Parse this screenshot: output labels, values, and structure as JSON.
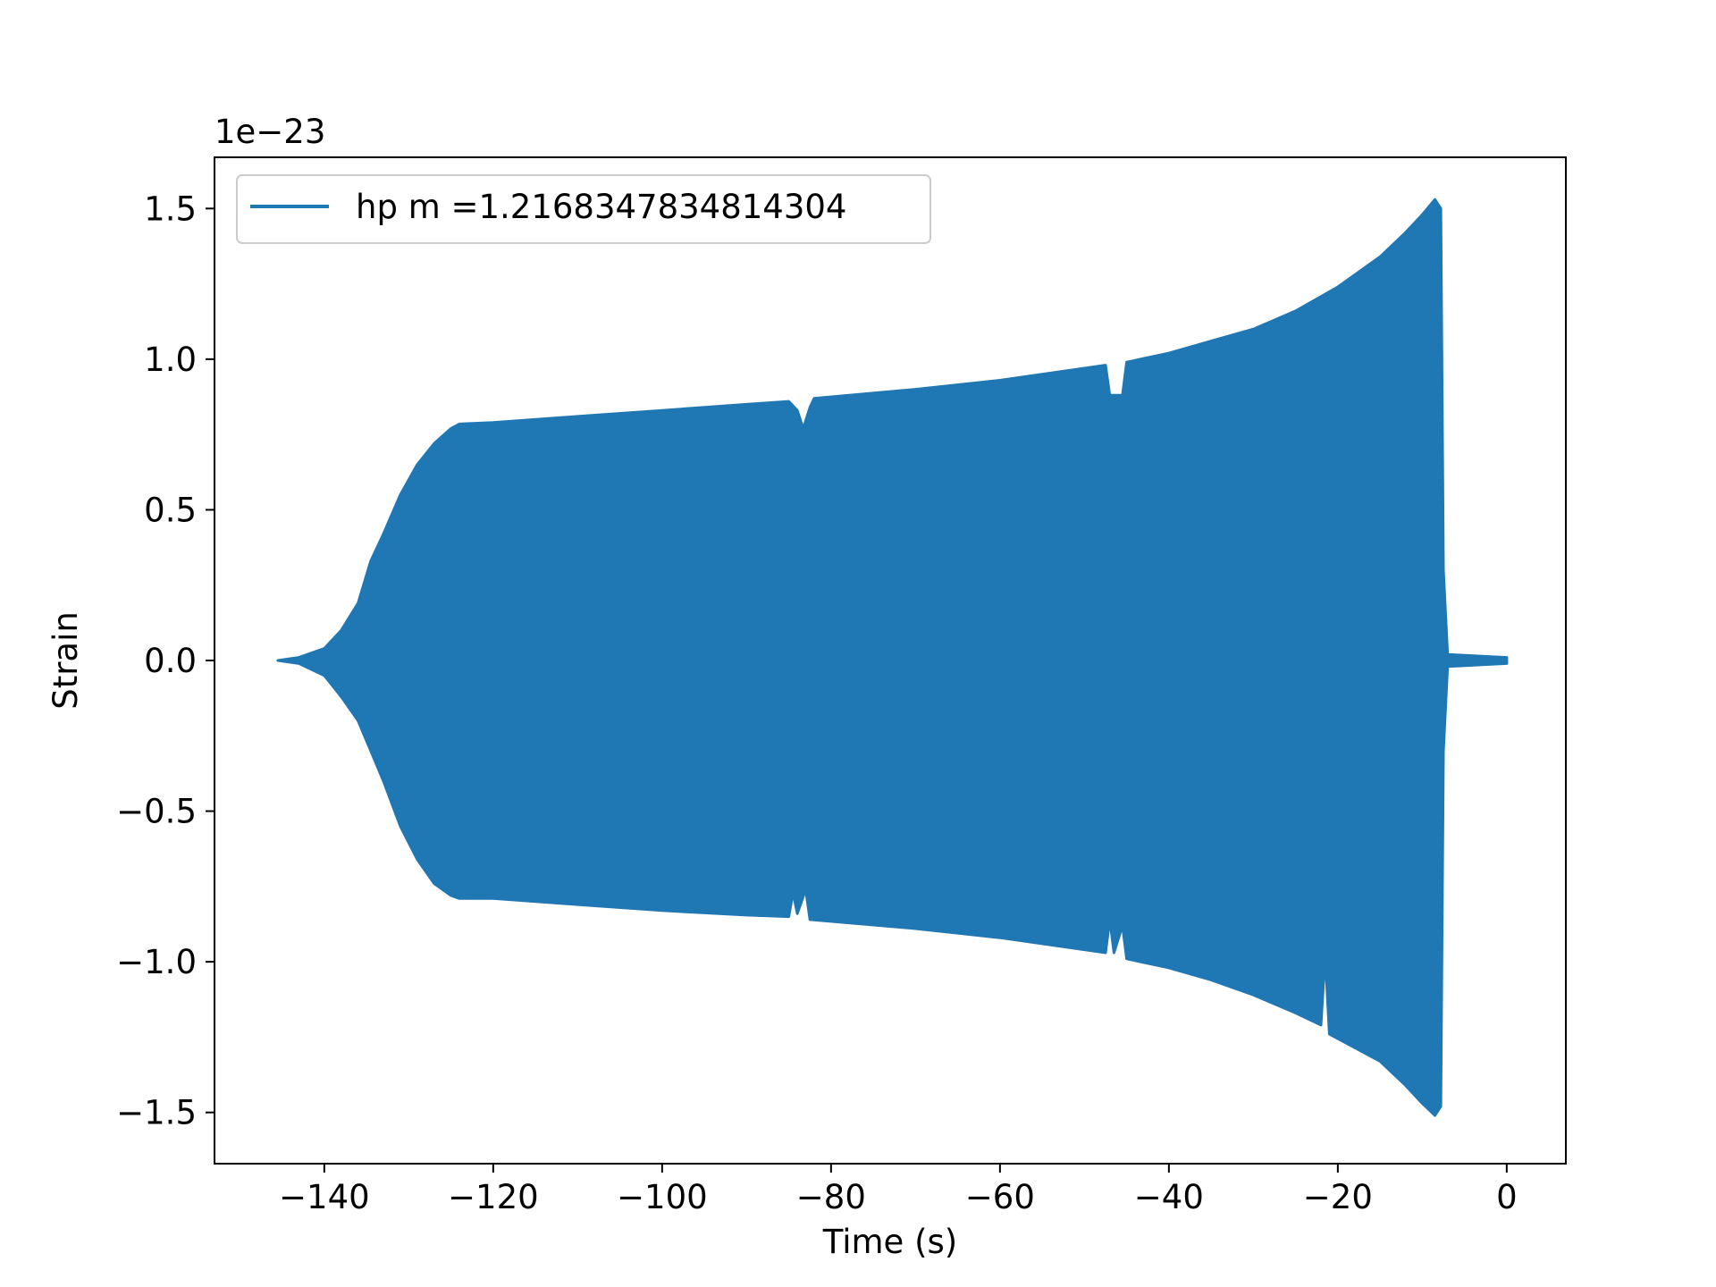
{
  "chart_data": {
    "type": "line",
    "title": "",
    "xlabel": "Time (s)",
    "ylabel": "Strain",
    "y_offset_label": "1e−23",
    "xlim": [
      -153,
      7
    ],
    "ylim": [
      -1.67,
      1.67
    ],
    "x_ticks": [
      -140,
      -120,
      -100,
      -80,
      -60,
      -40,
      -20,
      0
    ],
    "x_tick_labels": [
      "−140",
      "−120",
      "−100",
      "−80",
      "−60",
      "−40",
      "−20",
      "0"
    ],
    "y_ticks": [
      1.5,
      1.0,
      0.5,
      0.0,
      -0.5,
      -1.0,
      -1.5
    ],
    "y_tick_labels": [
      "1.5",
      "1.0",
      "0.5",
      "0.0",
      "−0.5",
      "−1.0",
      "−1.5"
    ],
    "grid": false,
    "legend": {
      "position": "top-left",
      "entries": [
        "hp m =1.2168347834814304"
      ]
    },
    "series": [
      {
        "name": "hp m =1.2168347834814304",
        "color": "#1f77b4",
        "upper_envelope": [
          [
            -145.5,
            0.0
          ],
          [
            -143.0,
            0.01
          ],
          [
            -140.0,
            0.04
          ],
          [
            -138.0,
            0.1
          ],
          [
            -136.0,
            0.19
          ],
          [
            -134.5,
            0.33
          ],
          [
            -133.0,
            0.42
          ],
          [
            -131.0,
            0.55
          ],
          [
            -129.0,
            0.65
          ],
          [
            -127.0,
            0.72
          ],
          [
            -125.0,
            0.77
          ],
          [
            -124.0,
            0.785
          ],
          [
            -120.0,
            0.79
          ],
          [
            -110.0,
            0.81
          ],
          [
            -100.0,
            0.83
          ],
          [
            -90.0,
            0.85
          ],
          [
            -85.0,
            0.86
          ],
          [
            -84.0,
            0.83
          ],
          [
            -83.3,
            0.77
          ],
          [
            -82.5,
            0.84
          ],
          [
            -82.0,
            0.87
          ],
          [
            -70.0,
            0.9
          ],
          [
            -60.0,
            0.93
          ],
          [
            -50.0,
            0.97
          ],
          [
            -47.5,
            0.98
          ],
          [
            -47.0,
            0.88
          ],
          [
            -45.5,
            0.88
          ],
          [
            -45.0,
            0.99
          ],
          [
            -40.0,
            1.02
          ],
          [
            -35.0,
            1.06
          ],
          [
            -30.0,
            1.1
          ],
          [
            -25.0,
            1.16
          ],
          [
            -20.0,
            1.24
          ],
          [
            -15.0,
            1.34
          ],
          [
            -12.0,
            1.42
          ],
          [
            -10.0,
            1.48
          ],
          [
            -8.5,
            1.53
          ],
          [
            -7.8,
            1.5
          ],
          [
            -7.5,
            0.3
          ],
          [
            -7.0,
            0.02
          ],
          [
            0.0,
            0.01
          ]
        ],
        "lower_envelope": [
          [
            -145.5,
            0.0
          ],
          [
            -143.0,
            -0.01
          ],
          [
            -140.0,
            -0.05
          ],
          [
            -138.0,
            -0.12
          ],
          [
            -136.0,
            -0.2
          ],
          [
            -134.5,
            -0.3
          ],
          [
            -133.0,
            -0.4
          ],
          [
            -131.0,
            -0.55
          ],
          [
            -129.0,
            -0.66
          ],
          [
            -127.0,
            -0.74
          ],
          [
            -125.0,
            -0.78
          ],
          [
            -124.0,
            -0.79
          ],
          [
            -120.0,
            -0.79
          ],
          [
            -110.0,
            -0.81
          ],
          [
            -100.0,
            -0.83
          ],
          [
            -90.0,
            -0.845
          ],
          [
            -85.0,
            -0.85
          ],
          [
            -84.5,
            -0.77
          ],
          [
            -84.0,
            -0.84
          ],
          [
            -83.0,
            -0.76
          ],
          [
            -82.5,
            -0.86
          ],
          [
            -70.0,
            -0.89
          ],
          [
            -60.0,
            -0.92
          ],
          [
            -50.0,
            -0.96
          ],
          [
            -47.5,
            -0.97
          ],
          [
            -47.0,
            -0.86
          ],
          [
            -46.5,
            -0.97
          ],
          [
            -45.5,
            -0.88
          ],
          [
            -45.0,
            -0.99
          ],
          [
            -40.0,
            -1.02
          ],
          [
            -35.0,
            -1.06
          ],
          [
            -30.0,
            -1.11
          ],
          [
            -25.0,
            -1.17
          ],
          [
            -22.0,
            -1.21
          ],
          [
            -21.5,
            -0.98
          ],
          [
            -21.0,
            -1.24
          ],
          [
            -15.0,
            -1.33
          ],
          [
            -12.0,
            -1.41
          ],
          [
            -10.0,
            -1.47
          ],
          [
            -8.5,
            -1.51
          ],
          [
            -7.8,
            -1.48
          ],
          [
            -7.5,
            -0.3
          ],
          [
            -7.0,
            -0.02
          ],
          [
            0.0,
            -0.01
          ]
        ]
      }
    ]
  }
}
